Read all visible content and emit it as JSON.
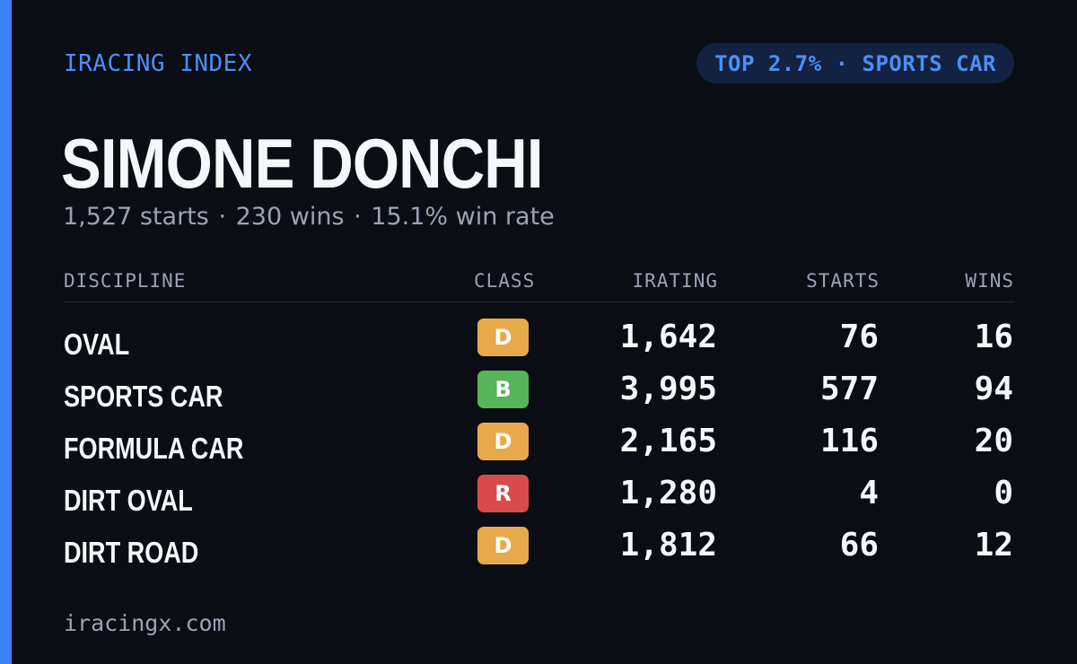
{
  "header": {
    "brand": "IRACING INDEX",
    "rank_badge": "TOP 2.7% · SPORTS CAR"
  },
  "driver": {
    "name": "SIMONE DONCHI",
    "starts_text": "1,527 starts",
    "wins_text": "230 wins",
    "win_rate_text": "15.1% win rate",
    "separator": "·"
  },
  "table": {
    "columns": {
      "discipline": "DISCIPLINE",
      "class": "CLASS",
      "irating": "IRATING",
      "starts": "STARTS",
      "wins": "WINS"
    },
    "rows": [
      {
        "discipline": "OVAL",
        "class": "D",
        "irating": "1,642",
        "starts": "76",
        "wins": "16"
      },
      {
        "discipline": "SPORTS CAR",
        "class": "B",
        "irating": "3,995",
        "starts": "577",
        "wins": "94"
      },
      {
        "discipline": "FORMULA CAR",
        "class": "D",
        "irating": "2,165",
        "starts": "116",
        "wins": "20"
      },
      {
        "discipline": "DIRT OVAL",
        "class": "R",
        "irating": "1,280",
        "starts": "4",
        "wins": "0"
      },
      {
        "discipline": "DIRT ROAD",
        "class": "D",
        "irating": "1,812",
        "starts": "66",
        "wins": "12"
      }
    ]
  },
  "class_colors": {
    "D": "#e8a94a",
    "B": "#56b45a",
    "R": "#d94b4b"
  },
  "colors": {
    "accent": "#3b82f6",
    "background": "#0b0d14"
  },
  "footer": {
    "site": "iracingx.com"
  }
}
